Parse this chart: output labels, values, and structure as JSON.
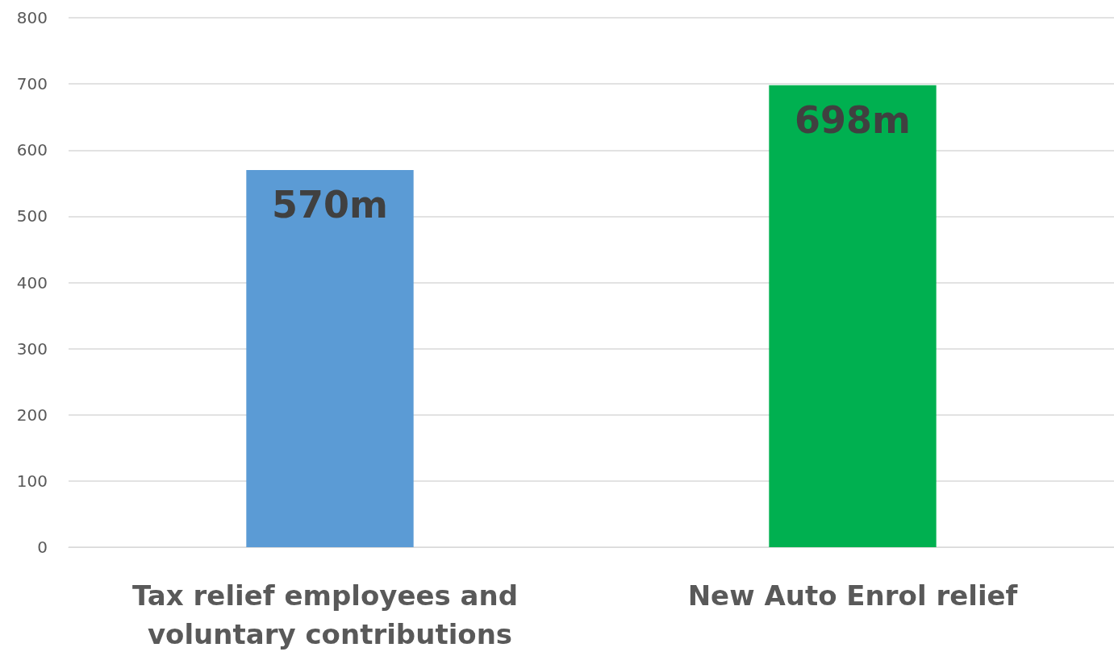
{
  "chart_data": {
    "type": "bar",
    "categories": [
      "Tax relief employees and voluntary contributions",
      "New Auto Enrol relief"
    ],
    "values": [
      570,
      698
    ],
    "colors": [
      "#5b9bd5",
      "#00b050"
    ],
    "value_labels": [
      "570m",
      "698m"
    ],
    "ylim": [
      0,
      800
    ],
    "yticks": [
      0,
      100,
      200,
      300,
      400,
      500,
      600,
      700,
      800
    ],
    "grid": "y"
  }
}
